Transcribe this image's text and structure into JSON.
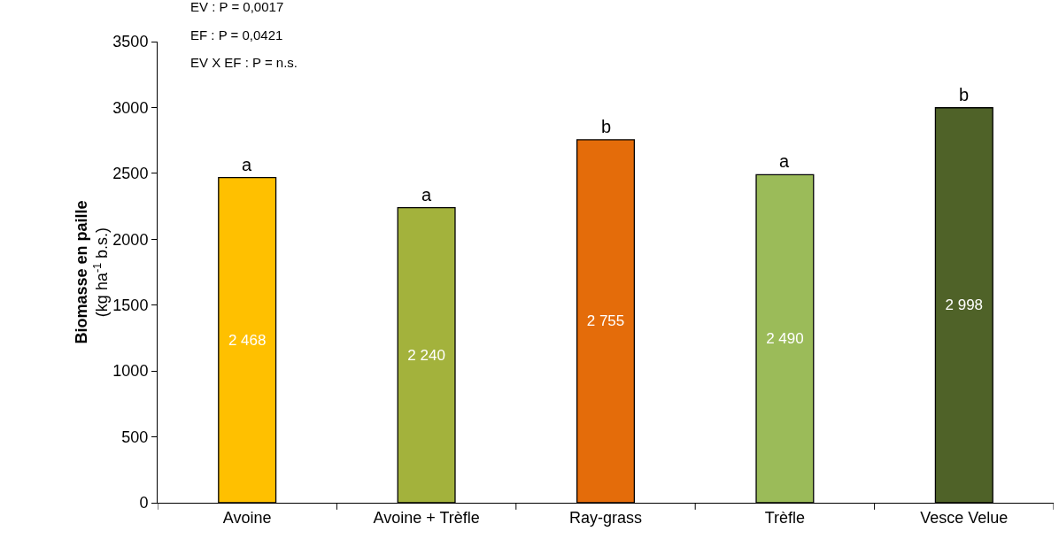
{
  "chart_data": {
    "type": "bar",
    "ylabel": "Biomasse en paille\n(kg ha$^{-1}$ b.s.)",
    "categories": [
      "Avoine",
      "Avoine + Trèfle",
      "Ray-grass",
      "Trèfle",
      "Vesce Velue"
    ],
    "values": [
      2468,
      2240,
      2755,
      2490,
      2998
    ],
    "colors": [
      "#ffc000",
      "#a3b23c",
      "#e46c0a",
      "#9bbb59",
      "#4f6228"
    ],
    "value_labels": [
      "2 468",
      "2 240",
      "2 755",
      "2 490",
      "2 998"
    ],
    "ylim": [
      0,
      3500
    ],
    "yticks": [
      0,
      500,
      1000,
      1500,
      2000,
      2500,
      3000,
      3500
    ],
    "grid": false,
    "legend": false,
    "annotations": [
      "EV : P = 0,0017",
      "EF : P = 0,0421",
      "EV X EF : P = n.s.",
      {
        "text": "a",
        "x": "Avoine",
        "y": 2468
      },
      {
        "text": "a",
        "x": "Avoine + Trèfle",
        "y": 2240
      },
      {
        "text": "b",
        "x": "Ray-grass",
        "y": 2755
      },
      {
        "text": "a",
        "x": "Trèfle",
        "y": 2490
      },
      {
        "text": "b",
        "x": "Vesce Velue",
        "y": 2998
      }
    ]
  }
}
